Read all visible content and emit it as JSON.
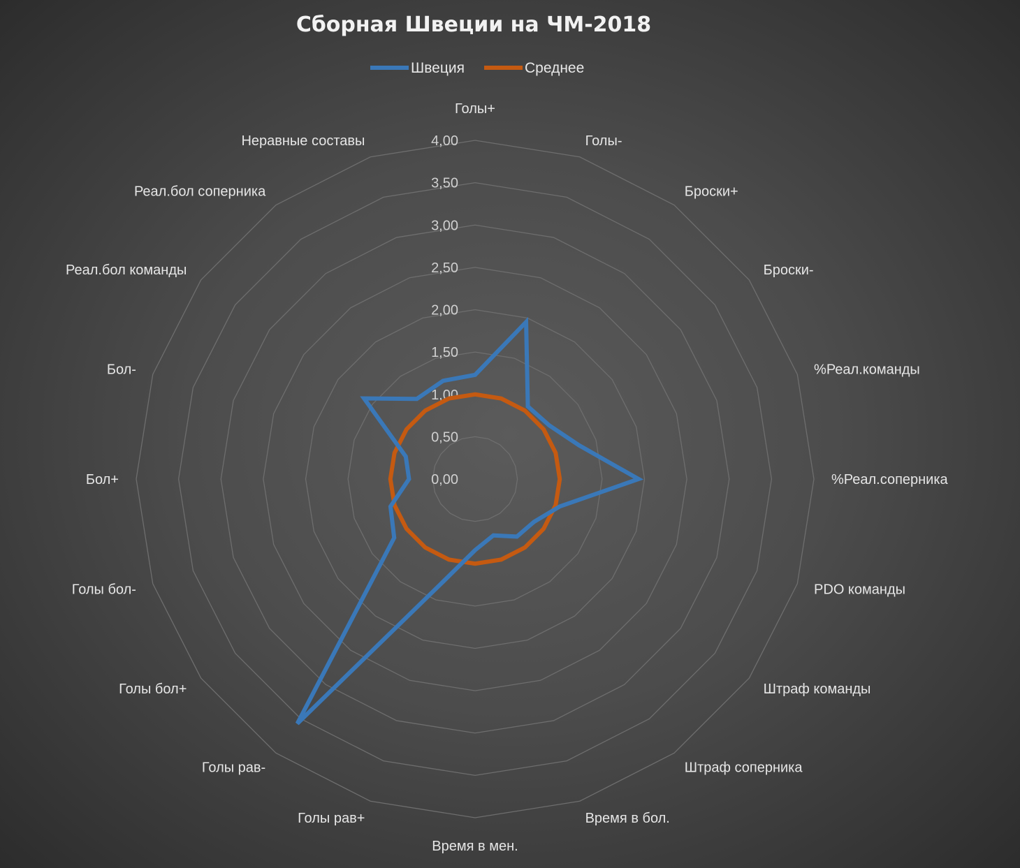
{
  "chart_data": {
    "type": "radar",
    "title": "Сборная Швеции на ЧМ-2018",
    "legend_position": "top",
    "categories": [
      "Голы+",
      "Голы-",
      "Броски+",
      "Броски-",
      "%Реал.команды",
      "%Реал.соперника",
      "PDO команды",
      "Штраф команды",
      "Штраф соперника",
      "Время в бол.",
      "Время в мен.",
      "Голы рав+",
      "Голы рав-",
      "Голы бол+",
      "Голы бол-",
      "Бол+",
      "Бол-",
      "Реал.бол команды",
      "Реал.бол соперника",
      "Неравные составы"
    ],
    "series": [
      {
        "name": "Швеция",
        "color": "#3a78b8",
        "values": [
          1.23,
          1.95,
          1.06,
          1.08,
          1.29,
          1.93,
          1.05,
          0.86,
          0.84,
          0.7,
          0.84,
          1.3,
          3.57,
          1.18,
          1.05,
          0.78,
          0.86,
          1.62,
          1.17,
          1.22
        ]
      },
      {
        "name": "Среднее",
        "color": "#c55a11",
        "values": [
          1,
          1,
          1,
          1,
          1,
          1,
          1,
          1,
          1,
          1,
          1,
          1,
          1,
          1,
          1,
          1,
          1,
          1,
          1,
          1
        ]
      }
    ],
    "rlim": [
      0,
      4
    ],
    "ticks": [
      "0,00",
      "0,50",
      "1,00",
      "1,50",
      "2,00",
      "2,50",
      "3,00",
      "3,50",
      "4,00"
    ],
    "tick_values": [
      0,
      0.5,
      1,
      1.5,
      2,
      2.5,
      3,
      3.5,
      4
    ],
    "grid": true
  }
}
